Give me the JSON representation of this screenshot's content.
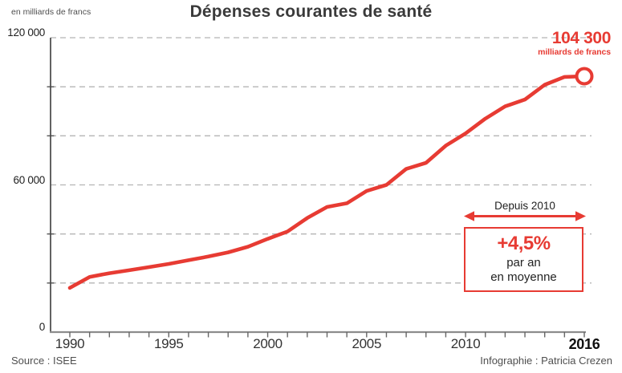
{
  "header": {
    "unit_label": "en milliards de francs",
    "title": "Dépenses courantes de santé"
  },
  "chart_data": {
    "type": "line",
    "title": "Dépenses courantes de santé",
    "ylabel": "en milliards de francs",
    "xlabel": "",
    "x": [
      1990,
      1991,
      1992,
      1993,
      1994,
      1995,
      1996,
      1997,
      1998,
      1999,
      2000,
      2001,
      2002,
      2003,
      2004,
      2005,
      2006,
      2007,
      2008,
      2009,
      2010,
      2011,
      2012,
      2013,
      2014,
      2015,
      2016
    ],
    "values": [
      18000,
      22500,
      24000,
      25200,
      26500,
      27800,
      29300,
      30800,
      32500,
      34800,
      38000,
      41000,
      46500,
      51000,
      52500,
      57500,
      60000,
      66500,
      69000,
      76000,
      81000,
      87000,
      92000,
      94800,
      100800,
      104000,
      104300
    ],
    "series_name": "Dépenses courantes de santé",
    "ylim": [
      0,
      120000
    ],
    "grid_interval": 20000,
    "grid_style": "dashed horizontal",
    "legend": "none",
    "y_ticks_labeled": [
      {
        "value": 0,
        "label": "0"
      },
      {
        "value": 60000,
        "label": "60 000"
      },
      {
        "value": 120000,
        "label": "120 000"
      }
    ],
    "y_minor_ticks": [
      20000,
      40000,
      80000,
      100000
    ],
    "x_ticks_labeled": [
      {
        "value": 1990,
        "label": "1990",
        "bold": false
      },
      {
        "value": 1995,
        "label": "1995",
        "bold": false
      },
      {
        "value": 2000,
        "label": "2000",
        "bold": false
      },
      {
        "value": 2005,
        "label": "2005",
        "bold": false
      },
      {
        "value": 2010,
        "label": "2010",
        "bold": false
      },
      {
        "value": 2016,
        "label": "2016",
        "bold": true
      }
    ],
    "end_marker": "open-circle",
    "last_point_value": "104 300"
  },
  "annotations": {
    "end_value": "104 300",
    "end_unit": "milliards de francs",
    "range_label": "Depuis 2010",
    "rate": "+4,5%",
    "rate_line2": "par an",
    "rate_line3": "en moyenne"
  },
  "footer": {
    "source": "Source : ISEE",
    "credit": "Infographie : Patricia Crezen"
  },
  "colors": {
    "accent": "#e73b33",
    "grid": "#b5b5b5",
    "axis": "#474747",
    "x_axis": "#8c8c8c",
    "text_dark": "#2d2d2d",
    "text_muted": "#4f4f4f"
  }
}
